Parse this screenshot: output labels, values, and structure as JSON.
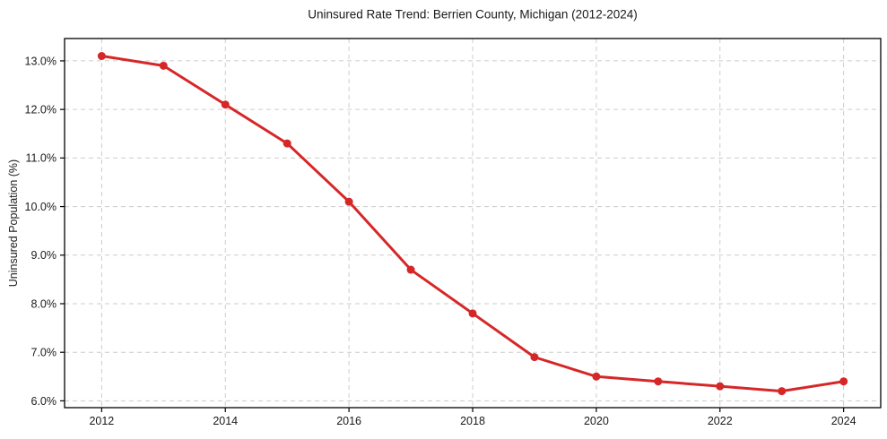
{
  "chart_data": {
    "type": "line",
    "title": "Uninsured Rate Trend: Berrien County, Michigan (2012-2024)",
    "ylabel": "Uninsured Population (%)",
    "x": [
      2012,
      2013,
      2014,
      2015,
      2016,
      2017,
      2018,
      2019,
      2020,
      2021,
      2022,
      2023,
      2024
    ],
    "values": [
      13.1,
      12.9,
      12.1,
      11.3,
      10.1,
      8.7,
      7.8,
      6.9,
      6.5,
      6.4,
      6.3,
      6.2,
      6.4
    ],
    "xlim": [
      2011.4,
      2024.6
    ],
    "ylim": [
      5.86,
      13.46
    ],
    "xticks": [
      2012,
      2014,
      2016,
      2018,
      2020,
      2022,
      2024
    ],
    "xtick_labels": [
      "2012",
      "2014",
      "2016",
      "2018",
      "2020",
      "2022",
      "2024"
    ],
    "yticks": [
      6,
      7,
      8,
      9,
      10,
      11,
      12,
      13
    ],
    "ytick_labels": [
      "6.0%",
      "7.0%",
      "8.0%",
      "9.0%",
      "10.0%",
      "11.0%",
      "12.0%",
      "13.0%"
    ],
    "grid": true,
    "grid_style": "dashed",
    "grid_color": "#cccccc",
    "line_color": "#d62728",
    "marker": "circle",
    "legend": false
  }
}
